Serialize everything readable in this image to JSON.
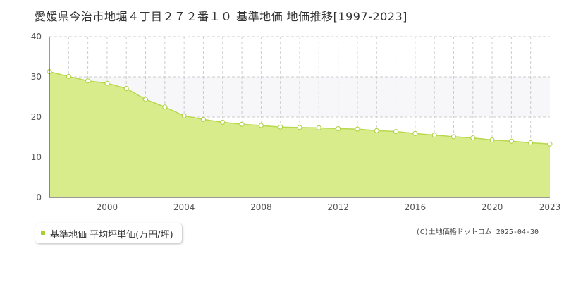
{
  "chart_data": {
    "type": "area",
    "title": "愛媛県今治市地堀４丁目２７２番１０ 基準地価 地価推移[1997-2023]",
    "xlabel": "",
    "ylabel": "",
    "xlim": [
      1997,
      2023
    ],
    "ylim": [
      0,
      40
    ],
    "yticks": [
      0,
      10,
      20,
      30,
      40
    ],
    "xticks": [
      2000,
      2004,
      2008,
      2012,
      2016,
      2020,
      2023
    ],
    "grid": true,
    "legend": "bottom-left",
    "series": [
      {
        "name": "基準地価 平均坪単価(万円/坪)",
        "color": "#a9cf38",
        "x": [
          1997,
          1998,
          1999,
          2000,
          2001,
          2002,
          2003,
          2004,
          2005,
          2006,
          2007,
          2008,
          2009,
          2010,
          2011,
          2012,
          2013,
          2014,
          2015,
          2016,
          2017,
          2018,
          2019,
          2020,
          2021,
          2022,
          2023
        ],
        "y": [
          31.3,
          30.1,
          29.0,
          28.4,
          27.1,
          24.4,
          22.5,
          20.3,
          19.4,
          18.7,
          18.2,
          17.9,
          17.5,
          17.4,
          17.3,
          17.1,
          17.0,
          16.6,
          16.4,
          15.9,
          15.5,
          15.1,
          14.8,
          14.3,
          14.0,
          13.6,
          13.3
        ]
      }
    ]
  },
  "legend": {
    "label": "基準地価 平均坪単価(万円/坪)"
  },
  "credit": "(C)土地価格ドットコム 2025-04-30",
  "colors": {
    "fill": "#d9ec8c",
    "line": "#b8d84e",
    "band": "#f7f7f9",
    "grid": "#cccccc",
    "marker": "#a9cf38"
  }
}
